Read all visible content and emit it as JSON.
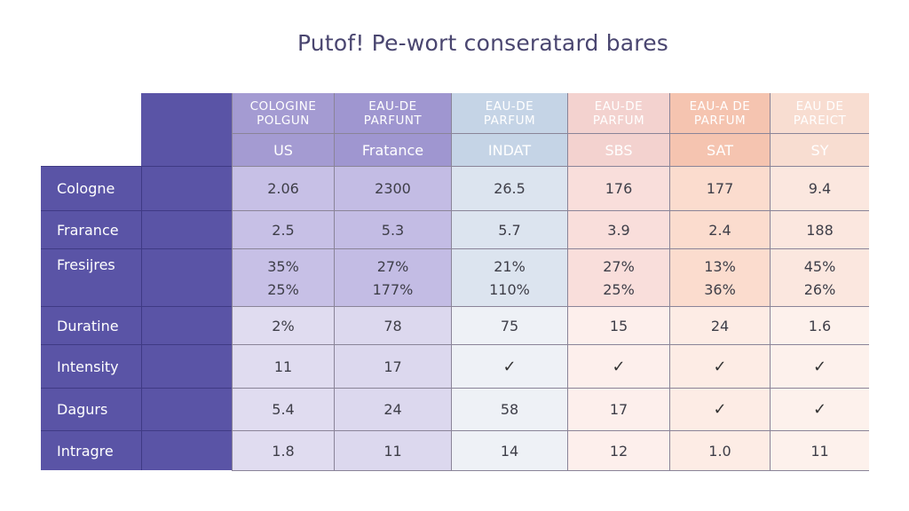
{
  "title": "Putof! Pe-wort conseratard bares",
  "columns": [
    {
      "top": [
        "COLOGINE",
        "POLGUN"
      ],
      "sub": "US"
    },
    {
      "top": [
        "EAU-DE",
        "PARFUNT"
      ],
      "sub": "Fratance"
    },
    {
      "top": [
        "EAU-DE",
        "PARFUM"
      ],
      "sub": "INDAT"
    },
    {
      "top": [
        "EAU-DE",
        "PARFUM"
      ],
      "sub": "SBS"
    },
    {
      "top": [
        "EAU-A DE",
        "PARFUM"
      ],
      "sub": "SAT"
    },
    {
      "top": [
        "EAU DE",
        "PAREICT"
      ],
      "sub": "SY"
    }
  ],
  "rows": [
    {
      "label": "Cologne",
      "values": [
        "2.06",
        "2300",
        "26.5",
        "176",
        "177",
        "9.4"
      ]
    },
    {
      "label": "Frarance",
      "values": [
        "2.5",
        "5.3",
        "5.7",
        "3.9",
        "2.4",
        "188"
      ]
    },
    {
      "label": "Fresijres",
      "values": [
        "35%",
        "27%",
        "21%",
        "27%",
        "13%",
        "45%"
      ],
      "values2": [
        "25%",
        "177%",
        "110%",
        "25%",
        "36%",
        "26%"
      ]
    },
    {
      "label": "Duratine",
      "values": [
        "2%",
        "78",
        "75",
        "15",
        "24",
        "1.6"
      ]
    },
    {
      "label": "Intensity",
      "values": [
        "11",
        "17",
        "✓",
        "✓",
        "✓",
        "✓"
      ]
    },
    {
      "label": "Dagurs",
      "values": [
        "5.4",
        "24",
        "58",
        "17",
        "✓",
        "✓"
      ]
    },
    {
      "label": "Intragre",
      "values": [
        "1.8",
        "11",
        "14",
        "12",
        "1.0",
        "11"
      ]
    }
  ],
  "colors": {
    "row_header": "#5a54a6",
    "title": "#4a4670",
    "col_header_bg": [
      "#a49bd2",
      "#9f96d0",
      "#c5d4e6",
      "#f3d2cf",
      "#f5c4b0",
      "#f8ddd1"
    ],
    "col_body_top": [
      "#c7c0e6",
      "#c3bce4",
      "#dce4ef",
      "#f9dedb",
      "#fbdcce",
      "#fbe7df"
    ],
    "col_body_bottom": [
      "#e0dcf0",
      "#dcd8ee",
      "#eef1f6",
      "#fdefec",
      "#fdece5",
      "#fdf1ec"
    ]
  }
}
